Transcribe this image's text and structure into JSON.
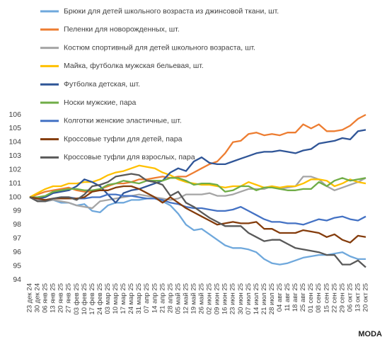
{
  "chart_data": {
    "type": "line",
    "x": [
      "23 дек 24",
      "30 дек 24",
      "06 янв 25",
      "13 янв 25",
      "20 янв 25",
      "27 янв 25",
      "03 фев 25",
      "10 фев 25",
      "17 фев 25",
      "24 фев 25",
      "03 мар 25",
      "10 мар 25",
      "17 мар 25",
      "24 мар 25",
      "31 мар 25",
      "07 апр 25",
      "14 апр 25",
      "21 апр 25",
      "28 апр 25",
      "05 май 25",
      "12 май 25",
      "19 май 25",
      "26 май 25",
      "02 июн 25",
      "09 июн 25",
      "16 июн 25",
      "23 июн 25",
      "30 июн 25",
      "07 июл 25",
      "14 июл 25",
      "21 июл 25",
      "28 июл 25",
      "04 авг 25",
      "11 авг 25",
      "18 авг 25",
      "25 авг 25",
      "01 сен 25",
      "08 сен 25",
      "15 сен 25",
      "22 сен 25",
      "29 сен 25",
      "06 окт 25",
      "13 окт 25",
      "20 окт 25"
    ],
    "series": [
      {
        "name": "Брюки для детей школьного возраста из джинсовой ткани, шт.",
        "color": "#6fa8dc",
        "values": [
          100,
          99.8,
          99.7,
          99.8,
          99.6,
          99.6,
          99.4,
          99.5,
          99.0,
          98.9,
          99.4,
          99.6,
          99.6,
          99.8,
          99.8,
          99.9,
          99.9,
          99.7,
          99.4,
          98.8,
          98.0,
          97.6,
          97.7,
          97.3,
          96.9,
          96.5,
          96.3,
          96.3,
          96.2,
          96.0,
          95.5,
          95.2,
          95.1,
          95.2,
          95.4,
          95.6,
          95.7,
          95.8,
          95.8,
          95.9,
          96.0,
          95.7,
          95.5,
          95.5
        ]
      },
      {
        "name": "Пеленки для новорожденных, шт.",
        "color": "#ed7d31",
        "values": [
          100,
          100.2,
          100.4,
          100.5,
          100.6,
          100.7,
          100.5,
          100.4,
          100.4,
          100.6,
          100.8,
          101.0,
          101.0,
          101.1,
          101.3,
          101.3,
          101.4,
          101.5,
          101.4,
          101.5,
          101.5,
          101.8,
          102.1,
          102.4,
          102.6,
          103.2,
          104.0,
          104.1,
          104.6,
          104.7,
          104.5,
          104.6,
          104.5,
          104.7,
          104.7,
          105.3,
          105.0,
          105.3,
          104.8,
          104.8,
          104.9,
          105.2,
          105.7,
          106.0
        ]
      },
      {
        "name": "Костюм спортивный для детей школьного возраста, шт.",
        "color": "#a5a5a5",
        "values": [
          100,
          99.8,
          99.7,
          99.8,
          99.7,
          99.6,
          99.4,
          99.3,
          99.2,
          99.7,
          99.8,
          99.9,
          100.0,
          100.1,
          100.2,
          100.1,
          100.0,
          99.9,
          99.8,
          99.9,
          100.2,
          100.2,
          100.2,
          100.3,
          100.1,
          100.1,
          100.2,
          100.4,
          100.6,
          100.6,
          100.6,
          100.8,
          100.6,
          100.7,
          100.8,
          101.5,
          101.5,
          101.3,
          100.8,
          100.5,
          100.7,
          100.9,
          101.1,
          101.4
        ]
      },
      {
        "name": "Майка, футболка мужская бельевая, шт.",
        "color": "#ffc000",
        "values": [
          100,
          100.3,
          100.6,
          100.8,
          100.8,
          101.0,
          101.0,
          101.1,
          101.1,
          101.3,
          101.6,
          101.8,
          101.9,
          102.1,
          102.3,
          102.2,
          102.1,
          101.8,
          101.6,
          101.3,
          101.1,
          101.0,
          100.9,
          100.9,
          100.8,
          100.7,
          100.8,
          100.8,
          101.1,
          100.9,
          100.7,
          100.8,
          100.7,
          100.8,
          100.8,
          101.0,
          101.3,
          101.3,
          101.2,
          100.8,
          101.0,
          101.3,
          101.1,
          101.0
        ]
      },
      {
        "name": "Футболка детская, шт.",
        "color": "#2f5597",
        "values": [
          100,
          99.9,
          100.0,
          100.3,
          100.4,
          100.5,
          100.8,
          101.3,
          101.1,
          100.8,
          100.2,
          99.6,
          100.3,
          100.5,
          100.6,
          100.8,
          101.0,
          101.2,
          101.8,
          102.1,
          101.9,
          102.6,
          102.9,
          102.5,
          102.4,
          102.4,
          102.6,
          102.8,
          103.0,
          103.2,
          103.3,
          103.3,
          103.4,
          103.3,
          103.2,
          103.4,
          103.5,
          103.9,
          104.0,
          104.1,
          104.3,
          104.2,
          104.8,
          104.9
        ]
      },
      {
        "name": "Носки мужские, пара",
        "color": "#70ad47",
        "values": [
          100,
          100.0,
          100.1,
          100.4,
          100.5,
          100.6,
          100.6,
          100.5,
          100.5,
          100.6,
          100.9,
          101.0,
          101.2,
          101.1,
          101.0,
          101.2,
          101.2,
          101.2,
          101.4,
          101.4,
          101.2,
          100.9,
          101.0,
          101.0,
          100.9,
          100.4,
          100.5,
          100.8,
          100.8,
          100.5,
          100.7,
          100.7,
          100.6,
          100.5,
          100.5,
          100.6,
          100.6,
          101.1,
          100.8,
          101.2,
          101.4,
          101.2,
          101.3,
          101.4
        ]
      },
      {
        "name": "Колготки женские эластичные, шт.",
        "color": "#4472c4",
        "values": [
          100,
          99.9,
          99.8,
          99.9,
          100.0,
          100.0,
          99.9,
          99.9,
          100.0,
          100.0,
          100.2,
          100.2,
          100.1,
          100.1,
          100.0,
          99.9,
          99.9,
          99.8,
          99.6,
          99.5,
          99.3,
          99.2,
          99.2,
          99.1,
          99.0,
          99.0,
          99.1,
          99.3,
          99.0,
          98.7,
          98.4,
          98.2,
          98.2,
          98.1,
          98.1,
          98.0,
          98.2,
          98.4,
          98.3,
          98.5,
          98.6,
          98.4,
          98.3,
          98.6
        ]
      },
      {
        "name": "Кроссовые туфли для детей, пара",
        "color": "#843c0c",
        "values": [
          100,
          99.9,
          99.8,
          99.9,
          99.9,
          99.9,
          99.9,
          100.0,
          100.4,
          100.5,
          100.5,
          100.7,
          100.8,
          100.8,
          100.6,
          100.3,
          100.0,
          99.6,
          100.0,
          99.6,
          99.2,
          98.9,
          98.6,
          98.3,
          98.0,
          98.1,
          98.2,
          98.1,
          98.1,
          98.2,
          97.7,
          97.7,
          97.4,
          97.4,
          97.4,
          97.6,
          97.5,
          97.4,
          97.1,
          97.3,
          96.9,
          96.7,
          97.2,
          97.1
        ]
      },
      {
        "name": "Кроссовые туфли для взрослых, пара",
        "color": "#595959",
        "values": [
          100,
          99.7,
          99.7,
          99.9,
          100.0,
          100.0,
          99.8,
          100.2,
          100.8,
          100.9,
          101.1,
          101.5,
          101.6,
          101.7,
          101.6,
          101.2,
          101.1,
          100.9,
          100.1,
          100.4,
          99.6,
          99.3,
          98.9,
          98.5,
          98.2,
          97.9,
          97.9,
          97.9,
          97.4,
          97.1,
          96.8,
          96.9,
          96.9,
          96.6,
          96.3,
          96.2,
          96.1,
          96.0,
          95.8,
          95.8,
          95.1,
          95.1,
          95.4,
          94.9
        ]
      }
    ],
    "ylim": [
      94,
      106
    ],
    "yticks": [
      94,
      95,
      96,
      97,
      98,
      99,
      100,
      101,
      102,
      103,
      104,
      105,
      106
    ],
    "grid": false,
    "legend": "top-left",
    "watermark": "MODA"
  }
}
